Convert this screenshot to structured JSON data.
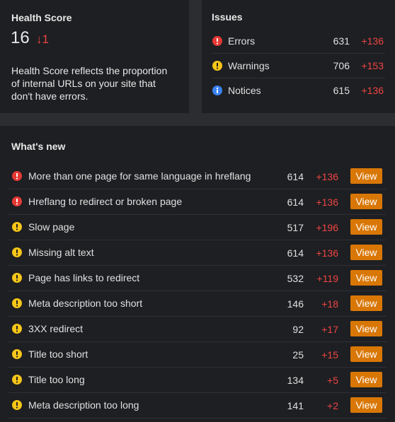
{
  "health": {
    "title": "Health Score",
    "score": "16",
    "change": "↓1",
    "description": "Health Score reflects the proportion of internal URLs on your site that don't have errors."
  },
  "issues": {
    "title": "Issues",
    "rows": [
      {
        "icon": "error",
        "label": "Errors",
        "count": "631",
        "delta": "+136"
      },
      {
        "icon": "warning",
        "label": "Warnings",
        "count": "706",
        "delta": "+153"
      },
      {
        "icon": "info",
        "label": "Notices",
        "count": "615",
        "delta": "+136"
      }
    ]
  },
  "whats_new": {
    "title": "What's new",
    "rows": [
      {
        "icon": "error",
        "label": "More than one page for same language in hreflang",
        "count": "614",
        "delta": "+136",
        "action": "View"
      },
      {
        "icon": "error",
        "label": "Hreflang to redirect or broken page",
        "count": "614",
        "delta": "+136",
        "action": "View"
      },
      {
        "icon": "warning",
        "label": "Slow page",
        "count": "517",
        "delta": "+196",
        "action": "View"
      },
      {
        "icon": "warning",
        "label": "Missing alt text",
        "count": "614",
        "delta": "+136",
        "action": "View"
      },
      {
        "icon": "warning",
        "label": "Page has links to redirect",
        "count": "532",
        "delta": "+119",
        "action": "View"
      },
      {
        "icon": "warning",
        "label": "Meta description too short",
        "count": "146",
        "delta": "+18",
        "action": "View"
      },
      {
        "icon": "warning",
        "label": "3XX redirect",
        "count": "92",
        "delta": "+17",
        "action": "View"
      },
      {
        "icon": "warning",
        "label": "Title too short",
        "count": "25",
        "delta": "+15",
        "action": "View"
      },
      {
        "icon": "warning",
        "label": "Title too long",
        "count": "134",
        "delta": "+5",
        "action": "View"
      },
      {
        "icon": "warning",
        "label": "Meta description too long",
        "count": "141",
        "delta": "+2",
        "action": "View"
      }
    ]
  }
}
